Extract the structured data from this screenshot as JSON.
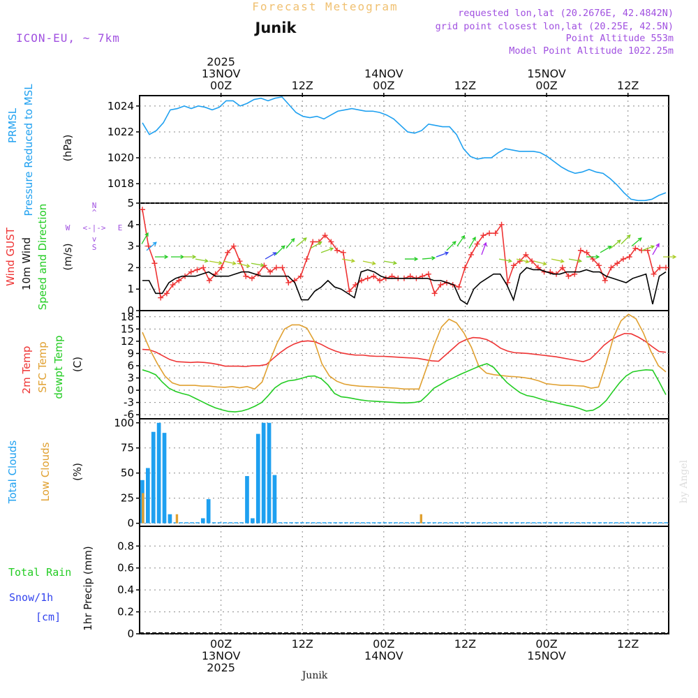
{
  "header": {
    "title": "Forecast Meteogram",
    "location": "Junik",
    "model": "ICON-EU, ~ 7km",
    "requested": "requested lon,lat (20.2676E, 42.4842N)",
    "gridpoint": "grid point closest lon,lat (20.25E, 42.5N)",
    "point_alt": "Point Altitude 553m",
    "model_alt": "Model Point Altitude 1022.25m",
    "footer_location": "Junik",
    "credit": "by Angel"
  },
  "colors": {
    "pressure": "#1ea0f0",
    "gust": "#ee3333",
    "wind": "#000000",
    "temp2m": "#ee3333",
    "sfc": "#e0a030",
    "dewpt": "#22cc22",
    "clouds": "#1ea0f0",
    "low_clouds": "#e0a030",
    "rain": "#22cc22",
    "snow": "#3344ee",
    "purple": "#a050e0",
    "title": "#f0c070"
  },
  "time_axis": {
    "labels": [
      {
        "t": 12,
        "top": [
          "2025",
          "13NOV",
          "00Z"
        ],
        "bottom": [
          "00Z",
          "13NOV",
          "2025"
        ]
      },
      {
        "t": 24,
        "top": [
          "12Z"
        ],
        "bottom": [
          "12Z"
        ]
      },
      {
        "t": 36,
        "top": [
          "14NOV",
          "00Z"
        ],
        "bottom": [
          "00Z",
          "14NOV"
        ]
      },
      {
        "t": 48,
        "top": [
          "12Z"
        ],
        "bottom": [
          "12Z"
        ]
      },
      {
        "t": 60,
        "top": [
          "15NOV",
          "00Z"
        ],
        "bottom": [
          "00Z",
          "15NOV"
        ]
      },
      {
        "t": 72,
        "top": [
          "12Z"
        ],
        "bottom": [
          "12Z"
        ]
      }
    ]
  },
  "chart_data": [
    {
      "type": "line",
      "title": "PRMSL Pressure Reduced to MSL",
      "ylabel_lines": [
        "PRMSL",
        "Pressure Reduced to MSL"
      ],
      "units": "(hPa)",
      "ylim": [
        1016.5,
        1024.8
      ],
      "yticks": [
        1018,
        1020,
        1022,
        1024
      ],
      "series": [
        {
          "name": "PRMSL",
          "color_key": "pressure",
          "values": [
            1022.7,
            1021.8,
            1022.1,
            1022.7,
            1023.7,
            1023.8,
            1024.0,
            1023.8,
            1024.0,
            1023.9,
            1023.7,
            1023.9,
            1024.4,
            1024.4,
            1024.0,
            1024.2,
            1024.5,
            1024.6,
            1024.4,
            1024.6,
            1024.7,
            1024.1,
            1023.5,
            1023.2,
            1023.1,
            1023.2,
            1023.0,
            1023.3,
            1023.6,
            1023.7,
            1023.8,
            1023.7,
            1023.6,
            1023.6,
            1023.5,
            1023.3,
            1023.0,
            1022.5,
            1022.0,
            1021.9,
            1022.1,
            1022.6,
            1022.5,
            1022.4,
            1022.4,
            1021.8,
            1020.7,
            1020.1,
            1019.9,
            1020.0,
            1020.0,
            1020.4,
            1020.7,
            1020.6,
            1020.5,
            1020.5,
            1020.5,
            1020.4,
            1020.1,
            1019.7,
            1019.3,
            1019.0,
            1018.8,
            1018.9,
            1019.1,
            1018.9,
            1018.8,
            1018.4,
            1017.9,
            1017.3,
            1016.8,
            1016.7,
            1016.7,
            1016.8,
            1017.1,
            1017.3
          ]
        }
      ]
    },
    {
      "type": "line",
      "title": "Wind GUST / 10m Wind Speed and Direction",
      "ylabel_lines": [
        "Wind GUST",
        "10m Wind",
        "Speed and Direction"
      ],
      "units": "(m/s)",
      "compass": {
        "w": "W",
        "e": "E",
        "n": "N",
        "s": "S"
      },
      "ylim": [
        0,
        5
      ],
      "yticks": [
        0,
        1,
        2,
        3,
        4,
        5
      ],
      "series": [
        {
          "name": "Wind GUST",
          "color_key": "gust",
          "markers": "+",
          "values": [
            4.7,
            3.0,
            2.2,
            0.6,
            0.8,
            1.2,
            1.4,
            1.6,
            1.8,
            1.9,
            2.0,
            1.4,
            1.7,
            2.0,
            2.7,
            3.0,
            2.3,
            1.6,
            1.5,
            1.7,
            2.1,
            1.8,
            2.0,
            2.0,
            1.3,
            1.4,
            1.6,
            2.4,
            3.2,
            3.2,
            3.5,
            3.2,
            2.8,
            2.7,
            0.9,
            1.2,
            1.4,
            1.5,
            1.6,
            1.4,
            1.5,
            1.6,
            1.5,
            1.5,
            1.6,
            1.5,
            1.6,
            1.7,
            0.8,
            1.2,
            1.3,
            1.2,
            1.1,
            2.0,
            2.6,
            3.1,
            3.5,
            3.6,
            3.6,
            4.0,
            1.3,
            2.1,
            2.3,
            2.6,
            2.3,
            2.0,
            1.8,
            1.8,
            1.7,
            2.0,
            1.6,
            1.7,
            2.8,
            2.7,
            2.4,
            2.1,
            1.4,
            2.0,
            2.2,
            2.4,
            2.5,
            2.9,
            2.8,
            2.8,
            1.7,
            2.0,
            2.0
          ]
        },
        {
          "name": "10m Wind",
          "color_key": "wind",
          "values": [
            1.4,
            1.4,
            0.8,
            0.8,
            1.3,
            1.5,
            1.6,
            1.6,
            1.6,
            1.7,
            1.8,
            1.6,
            1.6,
            1.6,
            1.7,
            1.8,
            1.8,
            1.7,
            1.6,
            1.6,
            1.6,
            1.6,
            1.6,
            1.3,
            0.5,
            0.5,
            0.9,
            1.1,
            1.4,
            1.1,
            1.0,
            0.8,
            0.6,
            1.8,
            1.9,
            1.8,
            1.6,
            1.5,
            1.5,
            1.5,
            1.5,
            1.5,
            1.5,
            1.5,
            1.4,
            1.4,
            1.3,
            1.2,
            0.5,
            0.3,
            1.0,
            1.3,
            1.5,
            1.7,
            1.7,
            1.2,
            0.5,
            1.7,
            2.0,
            1.9,
            1.9,
            1.8,
            1.7,
            1.7,
            1.8,
            1.8,
            1.8,
            1.9,
            1.8,
            1.8,
            1.6,
            1.5,
            1.4,
            1.3,
            1.5,
            1.6,
            1.7,
            0.3,
            1.6,
            1.8
          ]
        }
      ]
    },
    {
      "type": "line",
      "title": "2m Temp / SFC Temp / dewpt Temp",
      "ylabel_lines": [
        "2m Temp",
        "SFC Temp",
        "dewpt Temp"
      ],
      "units": "(C)",
      "ylim": [
        -7,
        19.5
      ],
      "yticks": [
        -6,
        -3,
        0,
        3,
        6,
        9,
        12,
        15,
        18
      ],
      "series": [
        {
          "name": "2m Temp",
          "color_key": "temp2m",
          "values": [
            10.0,
            9.9,
            9.3,
            8.4,
            7.5,
            7.0,
            6.9,
            6.8,
            6.9,
            6.8,
            6.6,
            6.3,
            5.9,
            5.9,
            5.9,
            5.8,
            6.0,
            6.0,
            6.3,
            7.8,
            9.2,
            10.4,
            11.3,
            11.9,
            12.1,
            11.9,
            11.2,
            10.3,
            9.6,
            9.1,
            8.8,
            8.6,
            8.6,
            8.4,
            8.3,
            8.3,
            8.2,
            8.1,
            8.0,
            7.9,
            7.8,
            7.5,
            7.2,
            7.1,
            8.6,
            10.1,
            11.6,
            12.4,
            12.9,
            12.8,
            12.4,
            11.5,
            10.3,
            9.6,
            9.2,
            9.1,
            9.0,
            8.8,
            8.6,
            8.4,
            8.2,
            7.9,
            7.6,
            7.3,
            7.0,
            7.6,
            9.2,
            11.0,
            12.3,
            13.2,
            13.9,
            13.8,
            13.0,
            12.0,
            10.7,
            9.5,
            9.3
          ]
        },
        {
          "name": "SFC Temp",
          "color_key": "sfc",
          "values": [
            14.2,
            10.0,
            6.5,
            3.5,
            1.8,
            1.2,
            1.2,
            1.2,
            1.0,
            1.0,
            0.8,
            0.7,
            0.9,
            0.6,
            0.9,
            0.3,
            2.0,
            7.0,
            11.5,
            15.0,
            16.0,
            16.0,
            15.2,
            12.0,
            6.5,
            3.5,
            2.2,
            1.5,
            1.2,
            1.0,
            0.9,
            0.8,
            0.7,
            0.6,
            0.5,
            0.3,
            0.3,
            0.3,
            5.5,
            11.0,
            15.5,
            17.4,
            16.5,
            14.0,
            10.5,
            5.8,
            4.2,
            3.8,
            3.6,
            3.4,
            3.3,
            3.1,
            2.8,
            2.3,
            1.6,
            1.4,
            1.2,
            1.2,
            1.1,
            1.0,
            0.5,
            0.8,
            6.5,
            13.0,
            17.0,
            18.6,
            17.5,
            14.0,
            9.5,
            6.0,
            4.5
          ]
        },
        {
          "name": "dewpt Temp",
          "color_key": "dewpt",
          "values": [
            5.0,
            4.5,
            3.8,
            2.0,
            0.5,
            -0.3,
            -0.8,
            -1.2,
            -2.0,
            -2.8,
            -3.6,
            -4.3,
            -4.8,
            -5.2,
            -5.3,
            -5.1,
            -4.6,
            -3.9,
            -3.0,
            -1.3,
            0.6,
            1.7,
            2.3,
            2.5,
            2.9,
            3.4,
            3.5,
            2.8,
            1.3,
            -0.8,
            -1.6,
            -1.8,
            -2.1,
            -2.4,
            -2.6,
            -2.7,
            -2.8,
            -2.9,
            -3.0,
            -3.1,
            -3.1,
            -3.0,
            -2.7,
            -1.2,
            0.5,
            1.4,
            2.4,
            3.1,
            3.9,
            4.6,
            5.3,
            6.0,
            6.5,
            5.6,
            3.7,
            1.9,
            0.6,
            -0.6,
            -1.3,
            -1.6,
            -2.1,
            -2.6,
            -2.9,
            -3.3,
            -3.7,
            -4.0,
            -4.5,
            -5.1,
            -4.9,
            -4.0,
            -2.5,
            -0.3,
            1.8,
            3.5,
            4.5,
            4.8,
            5.0,
            4.9,
            2.0,
            -1.1
          ]
        }
      ]
    },
    {
      "type": "bar",
      "title": "Total Clouds / Low Clouds",
      "ylabel_lines": [
        "Total Clouds",
        "Low Clouds"
      ],
      "units": "(%)",
      "ylim": [
        -3,
        104
      ],
      "yticks": [
        0,
        25,
        50,
        75,
        100
      ],
      "series": [
        {
          "name": "Total Clouds",
          "color_key": "clouds",
          "values": [
            43,
            55,
            91,
            100,
            90,
            9,
            1,
            1,
            1,
            1,
            1,
            5,
            24,
            1,
            1,
            1,
            1,
            1,
            1,
            47,
            5,
            89,
            100,
            100,
            48,
            1,
            1,
            1,
            1,
            1,
            1,
            1,
            1,
            1,
            1,
            1,
            1,
            1,
            1,
            1,
            1,
            1,
            1,
            1,
            1,
            1,
            1,
            1,
            1,
            1,
            1,
            1,
            1,
            1,
            1,
            1,
            1,
            1,
            1,
            1,
            1,
            1,
            1,
            1,
            1,
            1,
            1,
            1,
            1,
            1,
            1,
            1,
            1,
            1,
            1,
            1,
            1,
            1,
            1,
            1,
            1,
            1,
            1,
            1,
            1,
            1,
            1,
            1,
            1,
            1,
            1,
            1,
            1,
            1,
            1,
            1
          ]
        },
        {
          "name": "Low Clouds",
          "color_key": "low_clouds",
          "values": [
            30,
            0,
            0,
            0,
            0,
            9,
            0,
            0,
            0,
            0,
            0,
            0,
            0,
            0,
            0,
            0,
            0,
            0,
            0,
            0,
            0,
            0,
            0,
            0,
            0,
            0,
            0,
            0,
            0,
            0,
            0,
            0,
            0,
            0,
            0,
            0,
            0,
            0,
            0,
            0,
            0,
            9,
            0,
            0,
            0,
            0,
            0,
            0,
            0,
            0,
            0,
            0,
            0,
            0,
            0,
            0,
            0,
            0,
            0,
            0,
            0,
            0,
            0,
            0,
            0,
            0,
            0,
            0,
            0,
            0,
            0,
            0,
            0,
            0,
            0,
            0,
            0,
            0
          ]
        }
      ]
    },
    {
      "type": "line",
      "title": "Total Rain / Snow 1h Precip",
      "ylabel_lines": [
        "Total  Rain",
        "Snow/1h",
        "[cm]"
      ],
      "precip_label": "1hr Precip (mm)",
      "ylim": [
        0,
        0.98
      ],
      "yticks": [
        0,
        0.2,
        0.4,
        0.6,
        0.8
      ],
      "series": [
        {
          "name": "1hr Precip",
          "values": []
        }
      ]
    }
  ]
}
